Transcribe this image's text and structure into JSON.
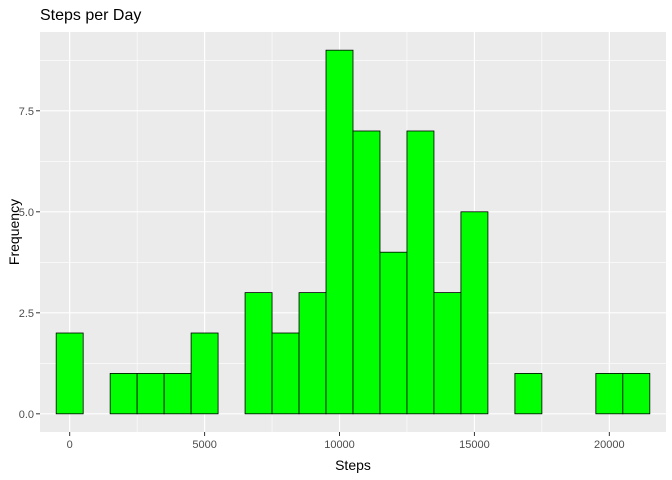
{
  "chart_data": {
    "type": "bar",
    "title": "Steps per Day",
    "xlabel": "Steps",
    "ylabel": "Frequency",
    "bin_width": 1000,
    "bins": [
      {
        "center": 0,
        "count": 2
      },
      {
        "center": 1000,
        "count": 0
      },
      {
        "center": 2000,
        "count": 1
      },
      {
        "center": 3000,
        "count": 1
      },
      {
        "center": 4000,
        "count": 1
      },
      {
        "center": 5000,
        "count": 2
      },
      {
        "center": 6000,
        "count": 0
      },
      {
        "center": 7000,
        "count": 3
      },
      {
        "center": 8000,
        "count": 2
      },
      {
        "center": 9000,
        "count": 3
      },
      {
        "center": 10000,
        "count": 9
      },
      {
        "center": 11000,
        "count": 7
      },
      {
        "center": 12000,
        "count": 4
      },
      {
        "center": 13000,
        "count": 7
      },
      {
        "center": 14000,
        "count": 3
      },
      {
        "center": 15000,
        "count": 5
      },
      {
        "center": 16000,
        "count": 0
      },
      {
        "center": 17000,
        "count": 1
      },
      {
        "center": 18000,
        "count": 0
      },
      {
        "center": 19000,
        "count": 0
      },
      {
        "center": 20000,
        "count": 1
      },
      {
        "center": 21000,
        "count": 1
      }
    ],
    "xlim": [
      -1100,
      22100
    ],
    "ylim": [
      -0.45,
      9.45
    ],
    "x_ticks": [
      0,
      5000,
      10000,
      15000,
      20000
    ],
    "x_tick_labels": [
      "0",
      "5000",
      "10000",
      "15000",
      "20000"
    ],
    "y_ticks": [
      0,
      2.5,
      5,
      7.5
    ],
    "y_tick_labels": [
      "0.0",
      "2.5",
      "5.0",
      "7.5"
    ],
    "grid": true,
    "colors": {
      "panel_background": "#EBEBEB",
      "grid_line": "#FFFFFF",
      "bar_fill": "#00FF00",
      "bar_stroke": "#000000",
      "tick_color": "#333333"
    }
  }
}
